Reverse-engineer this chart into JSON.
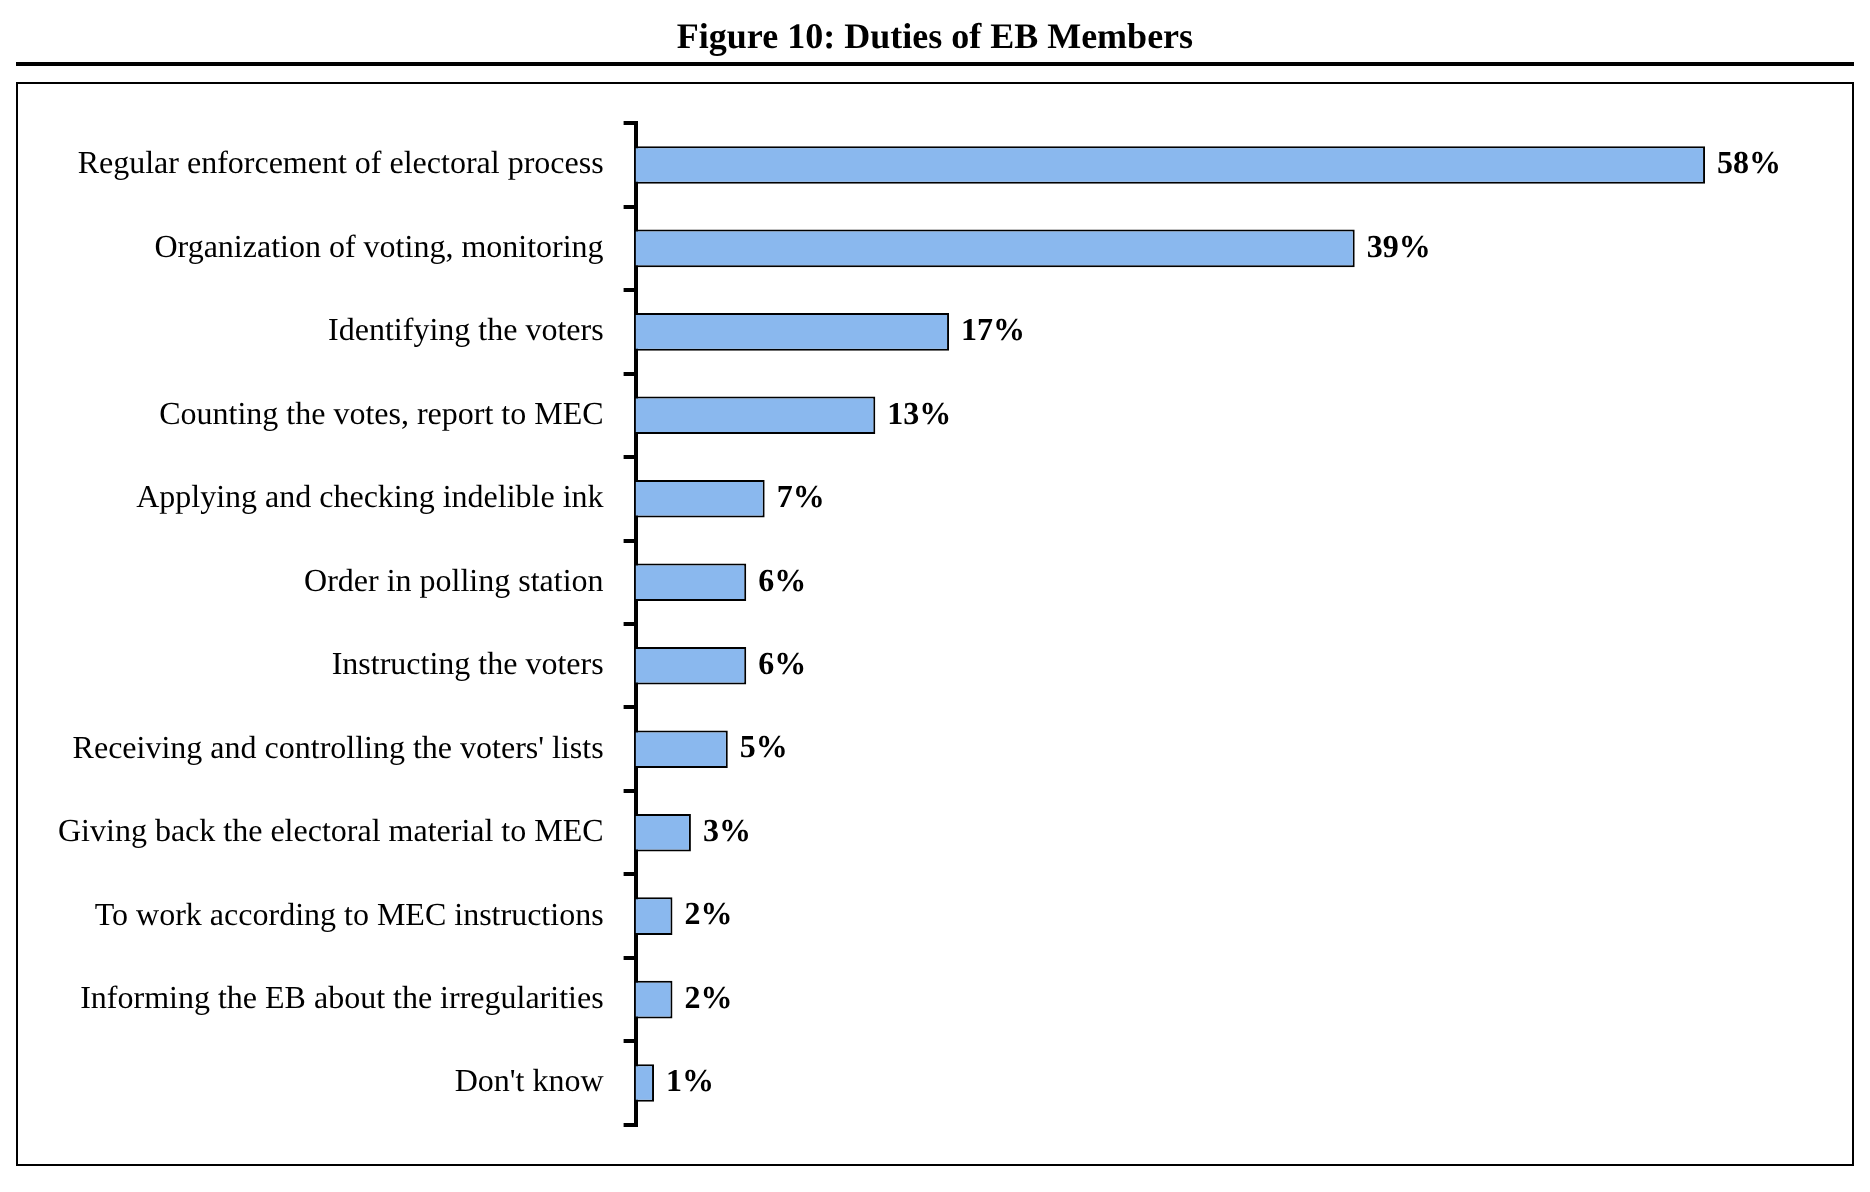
{
  "chart_data": {
    "type": "bar",
    "orientation": "horizontal",
    "title": "Figure 10: Duties of EB Members",
    "categories": [
      "Regular enforcement of electoral process",
      "Organization of voting, monitoring",
      "Identifying the voters",
      "Counting the votes, report to MEC",
      "Applying and checking indelible ink",
      "Order in polling station",
      "Instructing the voters",
      "Receiving and controlling the voters' lists",
      "Giving back the electoral material to MEC",
      "To work according to MEC instructions",
      "Informing the EB about the irregularities",
      "Don't know"
    ],
    "values": [
      58,
      39,
      17,
      13,
      7,
      6,
      6,
      5,
      3,
      2,
      2,
      1
    ],
    "value_labels": [
      "58%",
      "39%",
      "17%",
      "13%",
      "7%",
      "6%",
      "6%",
      "5%",
      "3%",
      "2%",
      "2%",
      "1%"
    ],
    "color": "#8ab8ee",
    "legend": false
  }
}
